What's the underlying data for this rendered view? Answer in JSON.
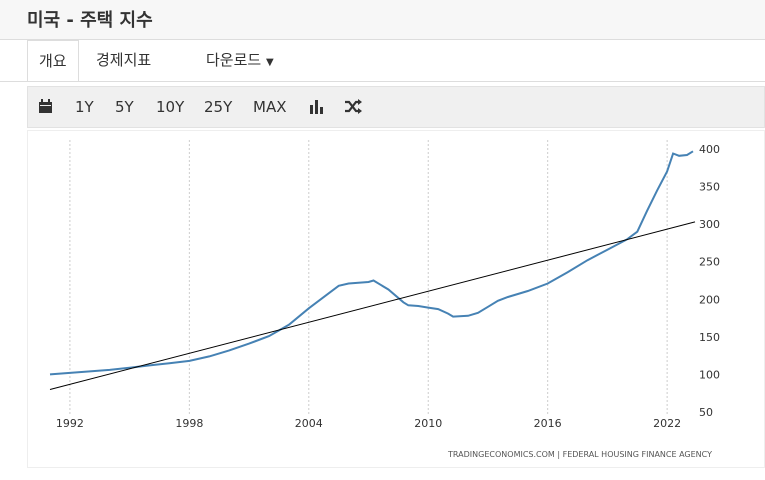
{
  "header": {
    "title": "미국 - 주택 지수"
  },
  "tabs": [
    "개요",
    "경제지표",
    "다운로드"
  ],
  "toolbar": {
    "ranges": [
      "1Y",
      "5Y",
      "10Y",
      "25Y",
      "MAX"
    ]
  },
  "chart_data": {
    "type": "line",
    "source": "TRADINGECONOMICS.COM  |  FEDERAL HOUSING FINANCE AGENCY",
    "xlim": [
      1991,
      2023.4
    ],
    "xticks": [
      1992,
      1998,
      2004,
      2010,
      2016,
      2022
    ],
    "ylim": [
      50,
      400
    ],
    "yticks": [
      50,
      100,
      150,
      200,
      250,
      300,
      350,
      400
    ],
    "grid": true,
    "series": [
      {
        "color": "#4682b4",
        "x": [
          1991,
          1992,
          1993,
          1994,
          1995,
          1996,
          1997,
          1998,
          1999,
          2000,
          2001,
          2002,
          2003,
          2004,
          2005,
          2005.5,
          2006,
          2007,
          2007.25,
          2008,
          2008.75,
          2009,
          2009.5,
          2010,
          2010.5,
          2011,
          2011.25,
          2012,
          2012.5,
          2013,
          2013.5,
          2014,
          2015,
          2016,
          2017,
          2018,
          2019,
          2020,
          2020.5,
          2021,
          2021.5,
          2022,
          2022.3,
          2022.6,
          2023,
          2023.3
        ],
        "values": [
          100,
          102,
          104,
          106,
          109,
          112,
          115,
          118,
          124,
          132,
          141,
          151,
          166,
          188,
          208,
          218,
          221,
          223,
          225,
          213,
          196,
          192,
          191,
          189,
          187,
          181,
          177,
          178,
          182,
          190,
          198,
          203,
          211,
          221,
          236,
          252,
          266,
          280,
          290,
          318,
          345,
          370,
          394,
          391,
          392,
          397
        ]
      },
      {
        "color": "#000000",
        "x": [
          1991,
          2023.4
        ],
        "values": [
          80,
          303
        ]
      }
    ]
  }
}
